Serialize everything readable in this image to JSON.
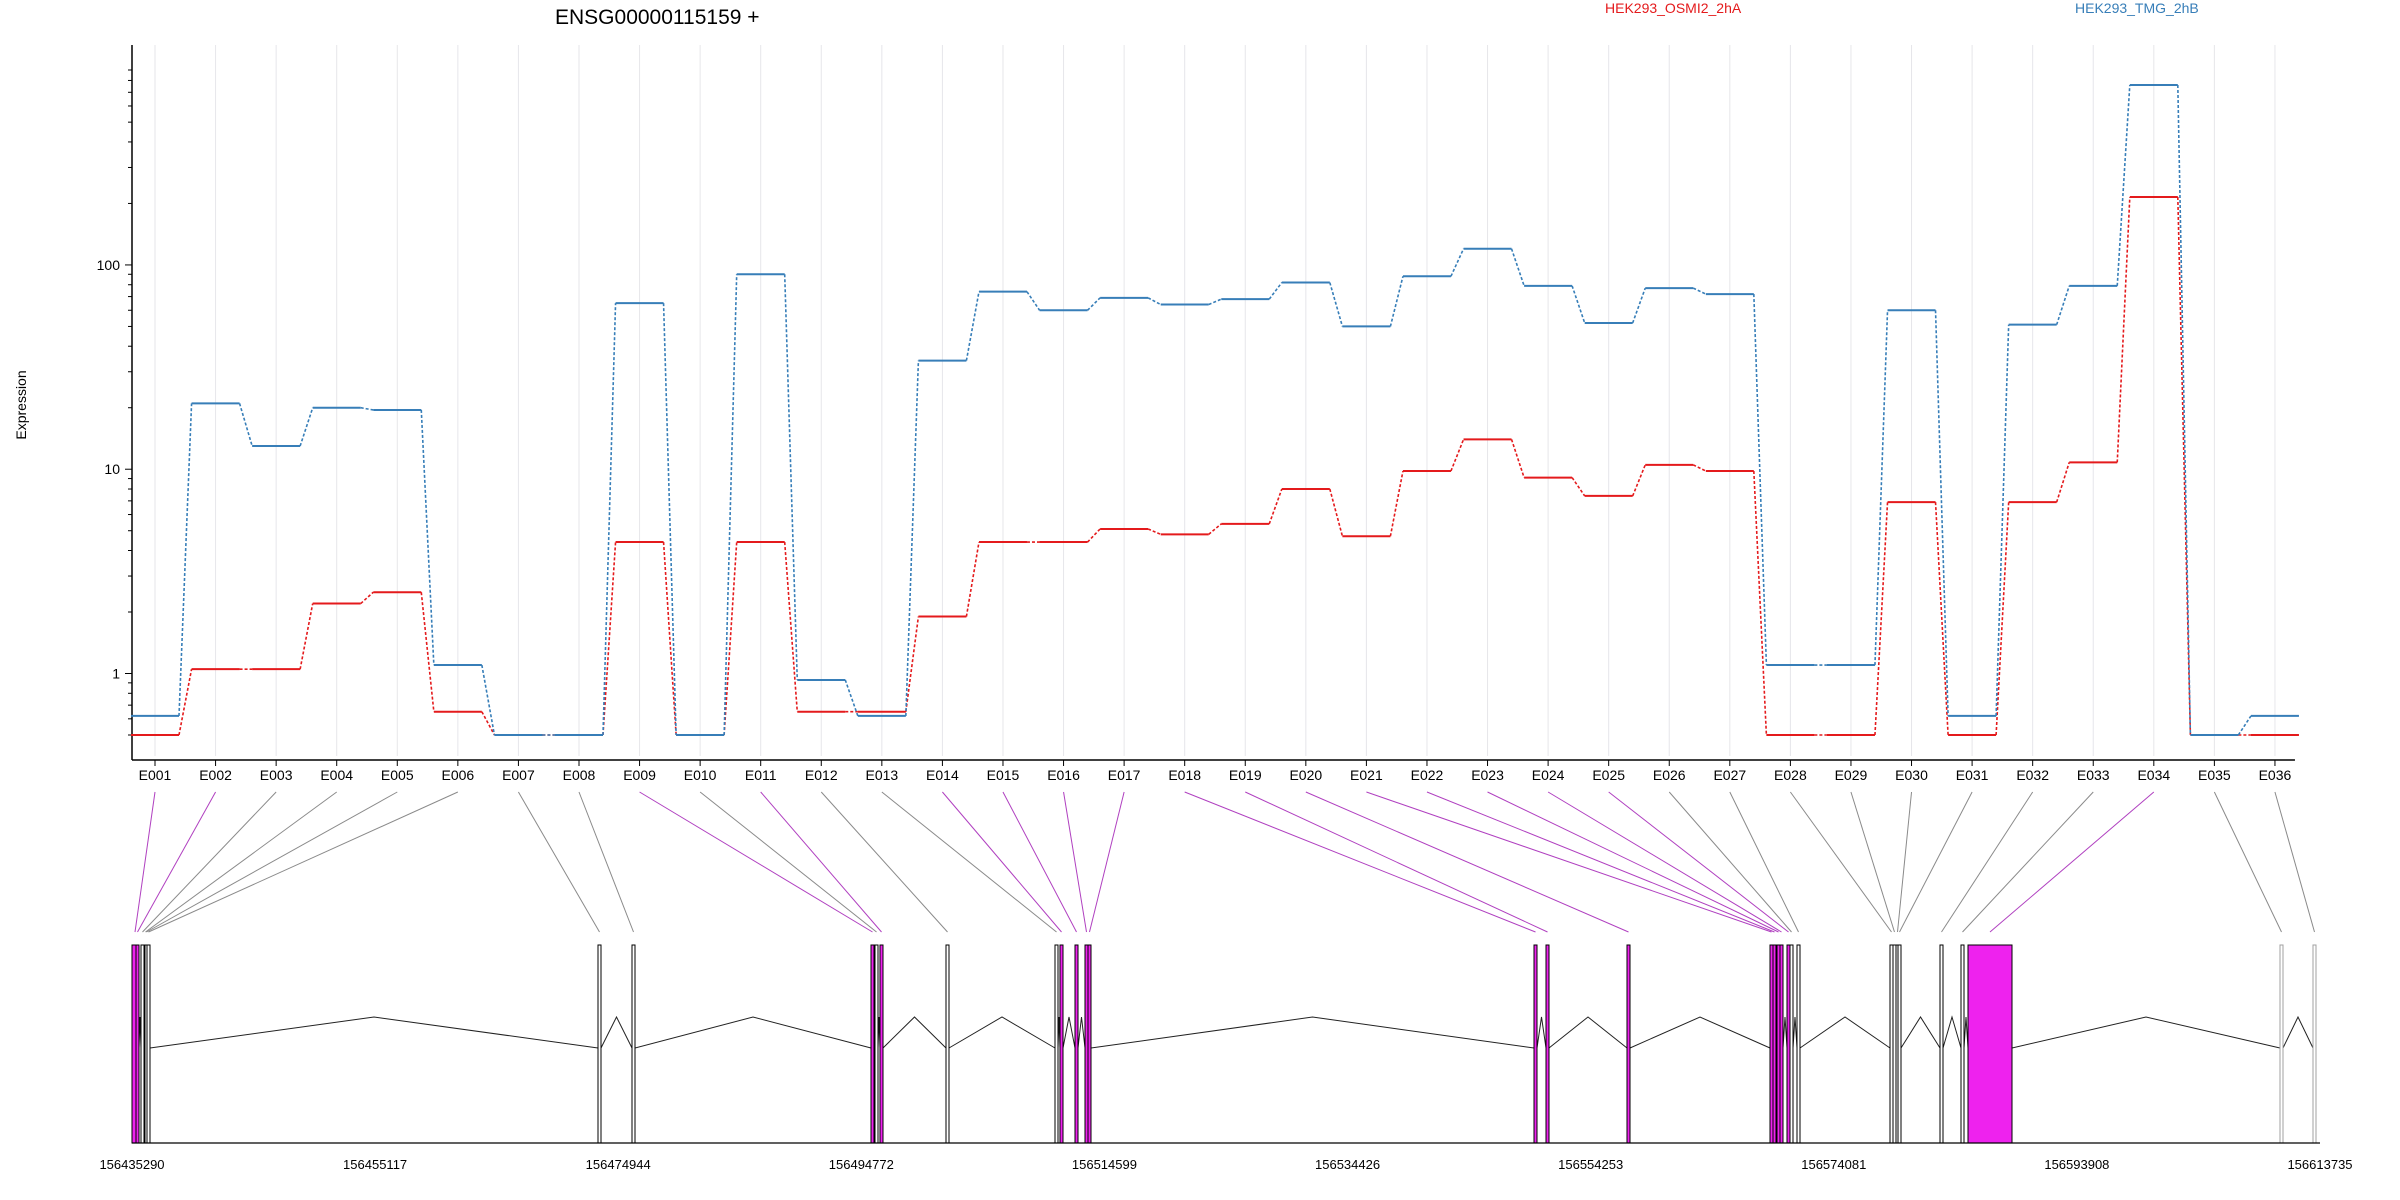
{
  "chart_data": {
    "type": "line",
    "title": "ENSG00000115159 +",
    "ylabel": "Expression",
    "yscale": "log",
    "ylim": [
      0.5,
      900
    ],
    "yticks": [
      {
        "value": 1,
        "label": "1"
      },
      {
        "value": 10,
        "label": "10"
      },
      {
        "value": 100,
        "label": "100"
      }
    ],
    "grid": "vertical",
    "colors": {
      "series_a": "#e41a1c",
      "series_b": "#377eb8",
      "exon_magenta": "#ee22ee",
      "exon_grey": "#a0a0a0",
      "axis": "#000000"
    },
    "categories": [
      "E001",
      "E002",
      "E003",
      "E004",
      "E005",
      "E006",
      "E007",
      "E008",
      "E009",
      "E010",
      "E011",
      "E012",
      "E013",
      "E014",
      "E015",
      "E016",
      "E017",
      "E018",
      "E019",
      "E020",
      "E021",
      "E022",
      "E023",
      "E024",
      "E025",
      "E026",
      "E027",
      "E028",
      "E029",
      "E030",
      "E031",
      "E032",
      "E033",
      "E034",
      "E035",
      "E036"
    ],
    "series": [
      {
        "name": "HEK293_OSMI2_2hA",
        "color": "#e41a1c",
        "values": [
          0.5,
          1.05,
          1.05,
          2.2,
          2.5,
          0.65,
          0.5,
          0.5,
          4.4,
          0.5,
          4.4,
          0.65,
          0.65,
          1.9,
          4.4,
          4.4,
          5.1,
          4.8,
          5.4,
          8.0,
          4.7,
          9.8,
          14.0,
          9.1,
          7.4,
          10.5,
          9.8,
          0.5,
          0.5,
          6.9,
          0.5,
          6.9,
          10.8,
          215,
          0.5,
          0.5
        ]
      },
      {
        "name": "HEK293_TMG_2hB",
        "color": "#377eb8",
        "values": [
          0.62,
          21,
          13,
          20,
          19.5,
          1.1,
          0.5,
          0.5,
          65,
          0.5,
          90,
          0.93,
          0.62,
          34,
          74,
          60,
          69,
          64,
          68,
          82,
          50,
          88,
          120,
          79,
          52,
          77,
          72,
          1.1,
          1.1,
          60,
          0.62,
          51,
          79,
          760,
          0.5,
          0.62
        ]
      }
    ],
    "exons_magenta": [
      "E001",
      "E002",
      "E009",
      "E011",
      "E014",
      "E015",
      "E016",
      "E017",
      "E018",
      "E019",
      "E020",
      "E021",
      "E022",
      "E023",
      "E024",
      "E025",
      "E034"
    ],
    "exons_grey": [
      "E035",
      "E036"
    ],
    "genomic_axis_labels": [
      "156435290",
      "156455117",
      "156474944",
      "156494772",
      "156514599",
      "156534426",
      "156554253",
      "156574081",
      "156593908",
      "156613735"
    ]
  }
}
